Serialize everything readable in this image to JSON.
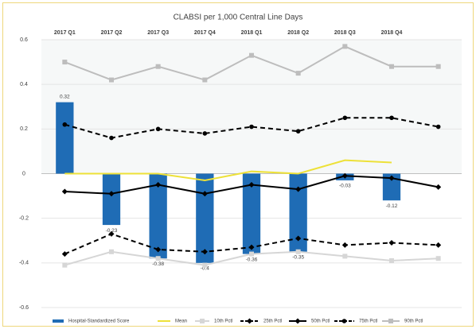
{
  "chart_data": {
    "type": "bar",
    "title": "CLABSI per 1,000 Central Line Days",
    "categories": [
      "2017 Q1",
      "2017 Q2",
      "2017 Q3",
      "2017 Q4",
      "2018 Q1",
      "2018 Q2",
      "2018 Q3",
      "2018 Q4",
      null
    ],
    "ylim": [
      -0.6,
      0.6
    ],
    "yticks": [
      0.6,
      0.4,
      0.2,
      0,
      -0.2,
      -0.4,
      -0.6
    ],
    "grid": true,
    "series": [
      {
        "name": "Hospital-Standardized Score",
        "type": "bar",
        "color": "#1f6cb5",
        "values": [
          0.32,
          -0.23,
          -0.38,
          -0.4,
          -0.36,
          -0.35,
          -0.03,
          -0.12,
          null
        ]
      },
      {
        "name": "Mean",
        "type": "line",
        "color": "#ede138",
        "dash": false,
        "marker": "none",
        "values": [
          0,
          0,
          0,
          -0.03,
          0.01,
          0,
          0.06,
          0.05,
          null
        ]
      },
      {
        "name": "10th Pctl",
        "type": "line",
        "color": "#d6d6d6",
        "dash": false,
        "marker": "square",
        "values": [
          -0.41,
          -0.35,
          -0.38,
          -0.41,
          -0.36,
          -0.35,
          -0.37,
          -0.39,
          -0.38
        ]
      },
      {
        "name": "25th Pctl",
        "type": "line",
        "color": "#000000",
        "dash": true,
        "marker": "diamond",
        "values": [
          -0.36,
          -0.27,
          -0.34,
          -0.35,
          -0.33,
          -0.29,
          -0.32,
          -0.31,
          -0.32
        ]
      },
      {
        "name": "50th Pctl",
        "type": "line",
        "color": "#000000",
        "dash": false,
        "marker": "diamond",
        "values": [
          -0.08,
          -0.09,
          -0.05,
          -0.09,
          -0.05,
          -0.07,
          -0.01,
          -0.02,
          -0.06
        ]
      },
      {
        "name": "75th Pctl",
        "type": "line",
        "color": "#000000",
        "dash": true,
        "marker": "circle",
        "values": [
          0.22,
          0.16,
          0.2,
          0.18,
          0.21,
          0.19,
          0.25,
          0.25,
          0.21
        ]
      },
      {
        "name": "90th Pctl",
        "type": "line",
        "color": "#bdbdbd",
        "dash": false,
        "marker": "square",
        "values": [
          0.5,
          0.42,
          0.48,
          0.42,
          0.53,
          0.45,
          0.57,
          0.48,
          0.48
        ]
      }
    ]
  }
}
